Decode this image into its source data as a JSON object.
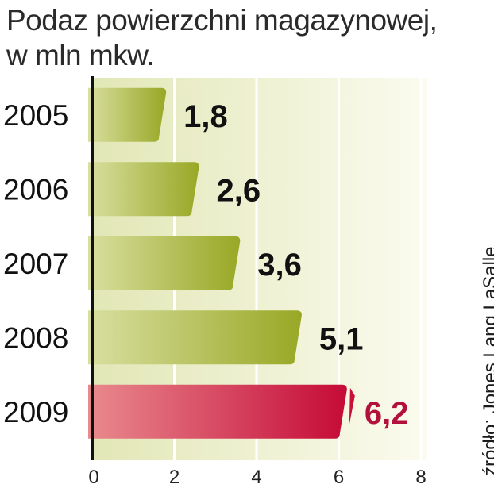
{
  "chart_data": {
    "type": "bar",
    "orientation": "horizontal",
    "title": "Podaz powierzchni magazynowej,",
    "subtitle": "w mln mkw.",
    "categories": [
      "2005",
      "2006",
      "2007",
      "2008",
      "2009"
    ],
    "values": [
      1.8,
      2.6,
      3.6,
      5.1,
      6.2
    ],
    "value_labels": [
      "1,8",
      "2,6",
      "3,6",
      "5,1",
      "6,2"
    ],
    "highlight_index": 4,
    "xlim": [
      0,
      8
    ],
    "xticks": [
      0,
      2,
      4,
      6,
      8
    ],
    "grid": true,
    "source": "źródło: Jones Lang LaSalle",
    "colors": {
      "bar": "#a3b12e",
      "bar_highlight": "#c8103a",
      "label": "#111111",
      "label_highlight": "#b3113d",
      "background": "#eef0d2"
    }
  }
}
